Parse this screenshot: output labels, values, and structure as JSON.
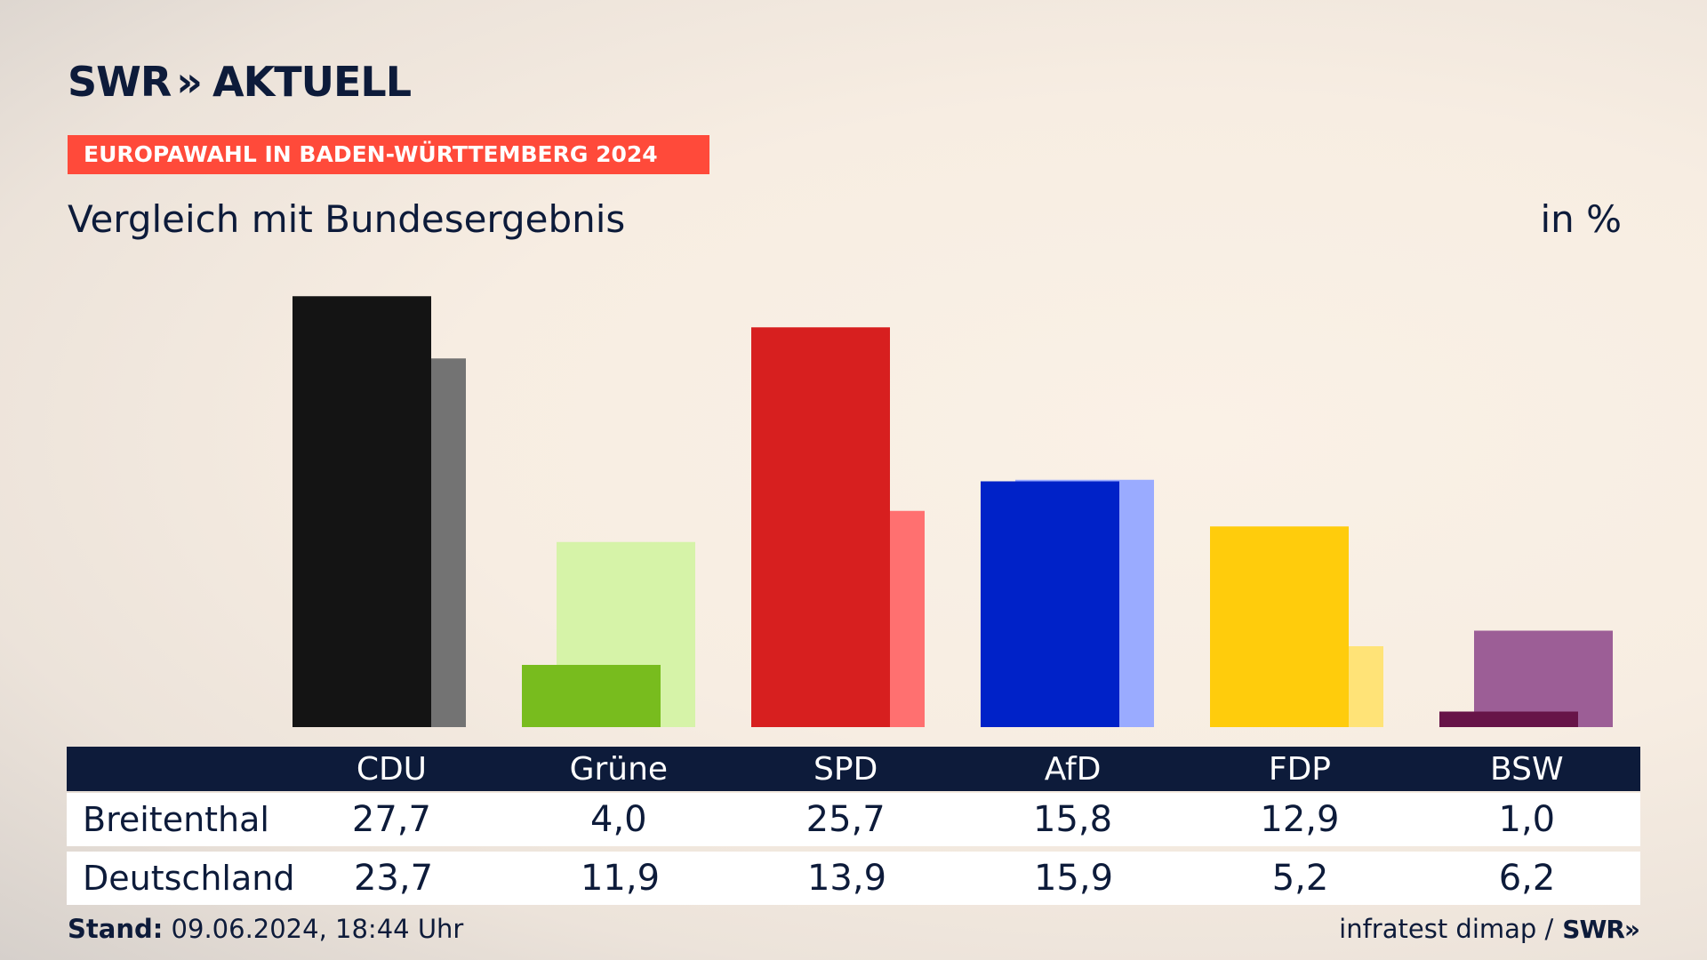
{
  "header": {
    "logo_text_1": "SWR",
    "logo_chevron": "»",
    "logo_text_2": "AKTUELL",
    "kicker": "EUROPAWAHL IN BADEN-WÜRTTEMBERG 2024",
    "subtitle": "Vergleich mit Bundesergebnis",
    "unit": "in %"
  },
  "chart_data": {
    "type": "bar",
    "categories": [
      "CDU",
      "Grüne",
      "SPD",
      "AfD",
      "FDP",
      "BSW"
    ],
    "series": [
      {
        "name": "Breitenthal",
        "values": [
          27.7,
          4.0,
          25.7,
          15.8,
          12.9,
          1.0
        ],
        "colors": [
          "#141414",
          "#78bc1e",
          "#d71f1f",
          "#0022c8",
          "#ffcc0c",
          "#671448"
        ]
      },
      {
        "name": "Deutschland",
        "values": [
          23.7,
          11.9,
          13.9,
          15.9,
          5.2,
          6.2
        ],
        "colors": [
          "#737373",
          "#d6f3a8",
          "#ff7070",
          "#9aabff",
          "#ffe377",
          "#9c5e96"
        ]
      }
    ],
    "ylim": [
      0,
      28
    ]
  },
  "table": {
    "headers": [
      "CDU",
      "Grüne",
      "SPD",
      "AfD",
      "FDP",
      "BSW"
    ],
    "rows": [
      {
        "label": "Breitenthal",
        "values": [
          "27,7",
          "4,0",
          "25,7",
          "15,8",
          "12,9",
          "1,0"
        ]
      },
      {
        "label": "Deutschland",
        "values": [
          "23,7",
          "11,9",
          "13,9",
          "15,9",
          "5,2",
          "6,2"
        ]
      }
    ]
  },
  "footer": {
    "stand_label": "Stand:",
    "stand_value": " 09.06.2024, 18:44 Uhr",
    "source": "infratest dimap / ",
    "mini_logo": "SWR»"
  }
}
